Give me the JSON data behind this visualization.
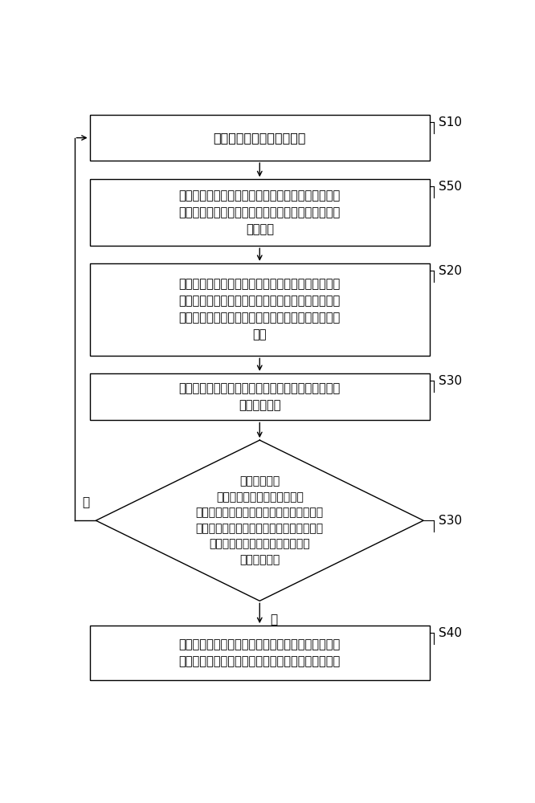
{
  "bg_color": "#ffffff",
  "box_edge_color": "#000000",
  "text_color": "#000000",
  "arrow_color": "#000000",
  "font_size": 10.5,
  "step_font_size": 11,
  "s10_text": "实时检测空调器的工作模式",
  "s50_text": "当空调器处于制冷模式或除湿模式的运行时间达到第\n一预设时间时，采集空调器所在室内空间的第二室内\n环境湿度",
  "s20_text": "当空调器处于制冷模式或除湿模式时，采集该空调器\n所在室内空间的室内环境温度和第一室内环境湿度，\n并对空调器处于制冷模式或除湿模式的运行时间进行\n计时",
  "s30rect_text": "当空调器处于制冷模式或除湿模式的运行时间达到第\n一预设时间时",
  "s30diamond_text": "判断第一室内\n环境湿度大于第一预设湿度、\n室内环境温度属于第一预设温度区间、第一\n室内环境湿度与第二室内环境湿度差值的绝\n对值小于第二预设湿度的判断条件\n是否同时成立",
  "s40_text": "将空调器的压缩机运行的最高频率设置为第一频率，\n并根据第一频率降低空调器的压缩机当前运行的频率",
  "yes_text": "是",
  "no_text": "否",
  "s10_label": "S10",
  "s50_label": "S50",
  "s20_label": "S20",
  "s30_label": "S30",
  "s40_label": "S40"
}
